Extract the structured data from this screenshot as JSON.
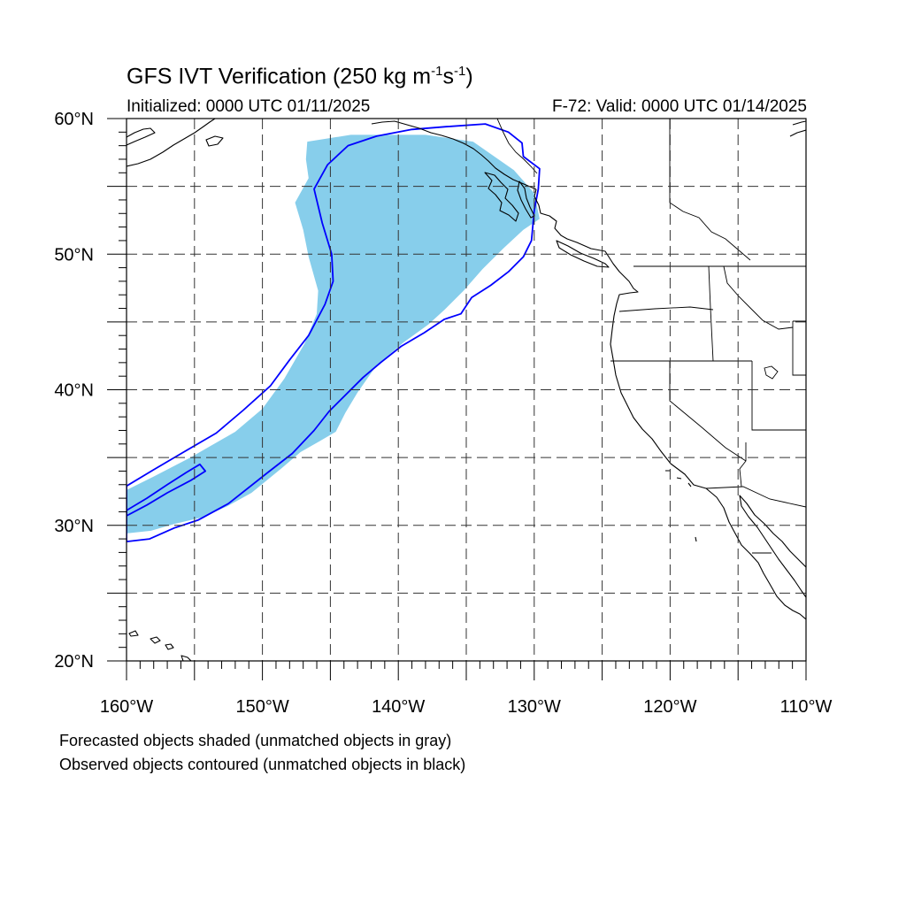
{
  "title": {
    "prefix": "GFS IVT Verification (250 kg m",
    "exp1": "-1",
    "mid": "s",
    "exp2": "-1",
    "suffix": ")"
  },
  "initialized": "Initialized: 0000 UTC 01/11/2025",
  "valid": "F-72: Valid: 0000 UTC 01/14/2025",
  "notes": {
    "forecast": "Forecasted objects shaded (unmatched objects in gray)",
    "observed": "Observed objects contoured (unmatched objects in black)"
  },
  "map": {
    "lon_range": [
      -160,
      -110
    ],
    "lat_range": [
      20,
      60
    ],
    "lat_labels": [
      {
        "lat": 60,
        "text": "60°N"
      },
      {
        "lat": 50,
        "text": "50°N"
      },
      {
        "lat": 40,
        "text": "40°N"
      },
      {
        "lat": 30,
        "text": "30°N"
      },
      {
        "lat": 20,
        "text": "20°N"
      }
    ],
    "lon_labels": [
      {
        "lon": -160,
        "text": "160°W"
      },
      {
        "lon": -150,
        "text": "150°W"
      },
      {
        "lon": -140,
        "text": "140°W"
      },
      {
        "lon": -130,
        "text": "130°W"
      },
      {
        "lon": -120,
        "text": "120°W"
      },
      {
        "lon": -110,
        "text": "110°W"
      }
    ],
    "grid_lons": [
      -155,
      -150,
      -145,
      -140,
      -135,
      -130,
      -125,
      -120,
      -115
    ],
    "grid_lats": [
      25,
      30,
      35,
      40,
      45,
      50,
      55
    ],
    "colors": {
      "forecast_fill": "#87ceeb",
      "observed_contour": "#0000ff",
      "coastline": "#000000"
    },
    "forecast_object": [
      [
        -146.7,
        58.3
      ],
      [
        -143.5,
        58.8
      ],
      [
        -138.0,
        58.8
      ],
      [
        -134.5,
        58.3
      ],
      [
        -131.5,
        56.2
      ],
      [
        -130.0,
        54.5
      ],
      [
        -129.6,
        52.6
      ],
      [
        -130.8,
        51.8
      ],
      [
        -132.3,
        50.4
      ],
      [
        -133.8,
        48.9
      ],
      [
        -135.2,
        47.3
      ],
      [
        -136.6,
        45.9
      ],
      [
        -137.8,
        44.8
      ],
      [
        -139.6,
        43.5
      ],
      [
        -141.6,
        41.8
      ],
      [
        -143.0,
        39.8
      ],
      [
        -143.9,
        38.3
      ],
      [
        -144.6,
        36.9
      ],
      [
        -145.8,
        36.2
      ],
      [
        -147.2,
        35.4
      ],
      [
        -148.6,
        34.2
      ],
      [
        -150.8,
        32.4
      ],
      [
        -152.6,
        31.4
      ],
      [
        -154.4,
        30.6
      ],
      [
        -156.5,
        30.1
      ],
      [
        -158.2,
        29.6
      ],
      [
        -160.0,
        29.4
      ],
      [
        -160.0,
        32.6
      ],
      [
        -158.0,
        33.6
      ],
      [
        -155.3,
        35.0
      ],
      [
        -152.0,
        36.9
      ],
      [
        -150.0,
        38.6
      ],
      [
        -148.4,
        40.8
      ],
      [
        -146.9,
        43.4
      ],
      [
        -146.0,
        45.6
      ],
      [
        -145.9,
        47.3
      ],
      [
        -146.6,
        49.8
      ],
      [
        -147.0,
        51.8
      ],
      [
        -147.6,
        53.8
      ],
      [
        -146.6,
        55.6
      ],
      [
        -146.8,
        57.0
      ]
    ],
    "observed_objects": [
      [
        [
          -136.5,
          59.4
        ],
        [
          -133.6,
          59.6
        ],
        [
          -131.9,
          59.0
        ],
        [
          -130.9,
          58.2
        ],
        [
          -130.8,
          57.2
        ],
        [
          -129.6,
          56.3
        ],
        [
          -129.7,
          54.8
        ],
        [
          -130.0,
          53.2
        ],
        [
          -130.2,
          51.0
        ],
        [
          -130.8,
          49.8
        ],
        [
          -131.9,
          48.7
        ],
        [
          -133.2,
          47.7
        ],
        [
          -134.6,
          46.8
        ],
        [
          -135.4,
          45.6
        ],
        [
          -136.6,
          45.2
        ],
        [
          -138.1,
          44.2
        ],
        [
          -139.8,
          43.2
        ],
        [
          -141.3,
          42.0
        ],
        [
          -142.6,
          40.9
        ],
        [
          -143.9,
          39.6
        ],
        [
          -145.1,
          38.4
        ],
        [
          -146.2,
          37.0
        ],
        [
          -147.8,
          35.3
        ],
        [
          -149.6,
          33.9
        ],
        [
          -152.5,
          31.6
        ],
        [
          -154.7,
          30.4
        ],
        [
          -156.5,
          29.8
        ],
        [
          -158.3,
          29.0
        ],
        [
          -160.0,
          28.8
        ],
        [
          -160.0,
          32.9
        ],
        [
          -158.0,
          34.1
        ],
        [
          -155.8,
          35.4
        ],
        [
          -153.4,
          36.8
        ],
        [
          -151.4,
          38.5
        ],
        [
          -149.4,
          40.3
        ],
        [
          -148.0,
          42.2
        ],
        [
          -146.6,
          44.0
        ],
        [
          -145.4,
          46.3
        ],
        [
          -144.8,
          48.0
        ],
        [
          -144.9,
          50.0
        ],
        [
          -145.6,
          52.3
        ],
        [
          -146.2,
          54.8
        ],
        [
          -145.2,
          56.6
        ],
        [
          -143.7,
          58.0
        ],
        [
          -141.6,
          58.7
        ],
        [
          -139.0,
          59.2
        ]
      ],
      [
        [
          -160.0,
          30.7
        ],
        [
          -158.5,
          31.5
        ],
        [
          -157.0,
          32.4
        ],
        [
          -155.3,
          33.3
        ],
        [
          -154.2,
          34.0
        ],
        [
          -154.6,
          34.5
        ],
        [
          -155.6,
          33.9
        ],
        [
          -157.0,
          33.0
        ],
        [
          -158.5,
          32.0
        ],
        [
          -160.0,
          31.1
        ]
      ]
    ]
  }
}
